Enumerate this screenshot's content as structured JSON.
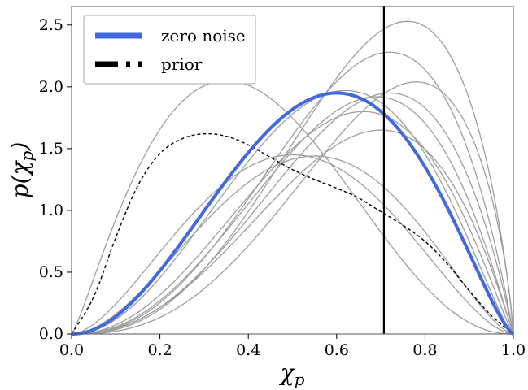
{
  "chart_data": {
    "type": "line",
    "xlabel": "χ_p",
    "ylabel": "p(χ_p)",
    "xlim": [
      0.0,
      1.0
    ],
    "ylim": [
      0.0,
      2.65
    ],
    "x_ticks": [
      "0.0",
      "0.2",
      "0.4",
      "0.6",
      "0.8",
      "1.0"
    ],
    "y_ticks": [
      "0.0",
      "0.5",
      "1.0",
      "1.5",
      "2.0",
      "2.5"
    ],
    "grid": false,
    "legend": {
      "placement": "top-left",
      "entries": [
        {
          "label": "zero noise",
          "color": "#4169e1",
          "style": "solid"
        },
        {
          "label": "prior",
          "color": "#000000",
          "style": "dashed"
        }
      ]
    },
    "vertical_line": {
      "x": 0.707,
      "color": "#000000"
    },
    "zero_noise": {
      "peak_x": 0.6,
      "peak_y": 1.95,
      "color": "#4169e1"
    },
    "prior": {
      "color": "#000000",
      "points": [
        [
          0,
          0
        ],
        [
          0.05,
          0.3
        ],
        [
          0.1,
          0.78
        ],
        [
          0.15,
          1.2
        ],
        [
          0.2,
          1.46
        ],
        [
          0.25,
          1.58
        ],
        [
          0.3,
          1.62
        ],
        [
          0.35,
          1.6
        ],
        [
          0.4,
          1.53
        ],
        [
          0.45,
          1.43
        ],
        [
          0.5,
          1.33
        ],
        [
          0.55,
          1.25
        ],
        [
          0.6,
          1.18
        ],
        [
          0.65,
          1.1
        ],
        [
          0.7,
          0.99
        ],
        [
          0.75,
          0.88
        ],
        [
          0.8,
          0.75
        ],
        [
          0.85,
          0.57
        ],
        [
          0.9,
          0.35
        ],
        [
          0.95,
          0.15
        ],
        [
          1.0,
          0
        ]
      ]
    },
    "noise_series_color": "#9e9e9e",
    "noise_series_peaks": [
      {
        "peak_x": 0.35,
        "peak_y": 2.05
      },
      {
        "peak_x": 0.5,
        "peak_y": 1.45
      },
      {
        "peak_x": 0.55,
        "peak_y": 1.44
      },
      {
        "peak_x": 0.62,
        "peak_y": 1.97
      },
      {
        "peak_x": 0.66,
        "peak_y": 1.8
      },
      {
        "peak_x": 0.69,
        "peak_y": 1.92
      },
      {
        "peak_x": 0.7,
        "peak_y": 1.65
      },
      {
        "peak_x": 0.72,
        "peak_y": 2.28
      },
      {
        "peak_x": 0.76,
        "peak_y": 2.53
      },
      {
        "peak_x": 0.72,
        "peak_y": 1.95
      },
      {
        "peak_x": 0.78,
        "peak_y": 2.04
      }
    ]
  }
}
